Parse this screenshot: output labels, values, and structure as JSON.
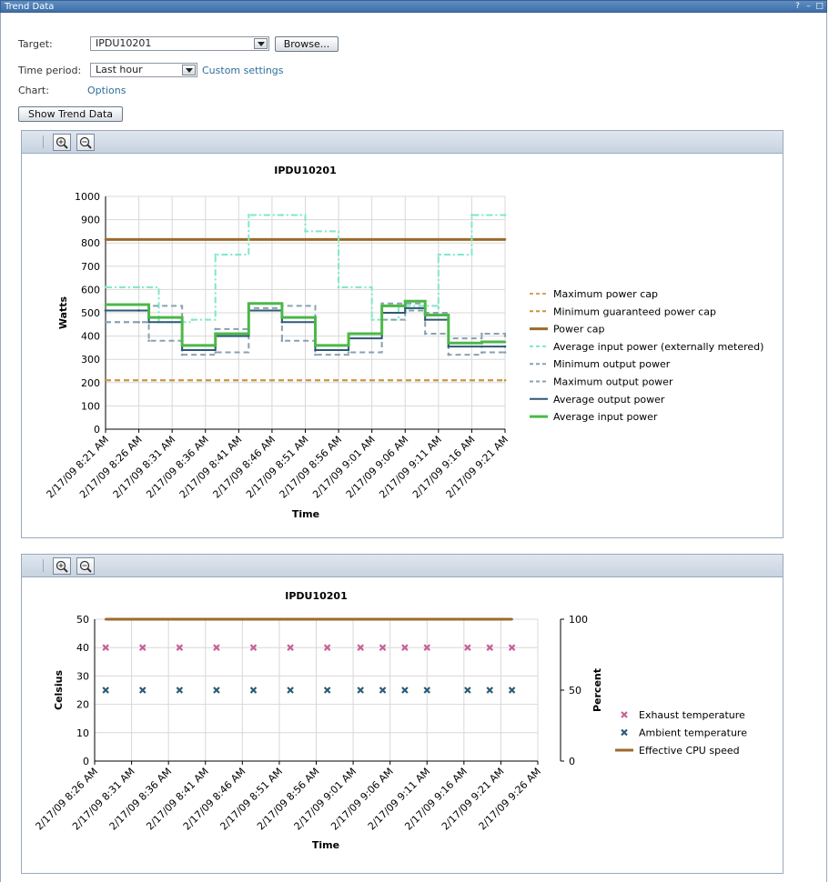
{
  "window": {
    "title": "Trend Data",
    "help_icon": "question-icon",
    "minimize_icon": "minimize-icon",
    "maximize_icon": "maximize-icon"
  },
  "form": {
    "target_label": "Target:",
    "target_value": "IPDU10201",
    "browse_label": "Browse...",
    "time_period_label": "Time period:",
    "time_period_value": "Last hour",
    "custom_settings_label": "Custom settings",
    "chart_label": "Chart:",
    "options_label": "Options",
    "show_trend_label": "Show Trend Data"
  },
  "toolbar": {
    "zoom_in_icon": "zoom-in-icon",
    "zoom_out_icon": "zoom-out-icon"
  },
  "chart_data": [
    {
      "type": "line",
      "title": "IPDU10201",
      "xlabel": "Time",
      "ylabel": "Watts",
      "ylim": [
        0,
        1000
      ],
      "yticks": [
        "0",
        "100",
        "200",
        "300",
        "400",
        "500",
        "600",
        "700",
        "800",
        "900",
        "1000"
      ],
      "grid": true,
      "legend": "right",
      "x": [
        "2/17/09 8:21 AM",
        "2/17/09 8:26 AM",
        "2/17/09 8:31 AM",
        "2/17/09 8:36 AM",
        "2/17/09 8:41 AM",
        "2/17/09 8:46 AM",
        "2/17/09 8:51 AM",
        "2/17/09 8:56 AM",
        "2/17/09 9:01 AM",
        "2/17/09 9:06 AM",
        "2/17/09 9:11 AM",
        "2/17/09 9:16 AM",
        "2/17/09 9:21 AM"
      ],
      "series": [
        {
          "name": "Maximum power cap",
          "color": "#d9a066",
          "style": "dashed",
          "points": [
            [
              0,
              210
            ],
            [
              12,
              210
            ]
          ]
        },
        {
          "name": "Minimum guaranteed power cap",
          "color": "#c8933f",
          "style": "dashed",
          "points": [
            [
              0,
              210
            ],
            [
              12,
              210
            ]
          ]
        },
        {
          "name": "Power cap",
          "color": "#9c6a2c",
          "style": "solid-thick",
          "points": [
            [
              0,
              815
            ],
            [
              12,
              815
            ]
          ]
        },
        {
          "name": "Average input power (externally metered)",
          "color": "#7ee8c8",
          "style": "dashdot",
          "points": [
            [
              0,
              610
            ],
            [
              1,
              610
            ],
            [
              1.6,
              460
            ],
            [
              2.6,
              470
            ],
            [
              3.3,
              750
            ],
            [
              4.3,
              920
            ],
            [
              5.3,
              920
            ],
            [
              6,
              850
            ],
            [
              7,
              610
            ],
            [
              8,
              470
            ],
            [
              8.8,
              530
            ],
            [
              10,
              520
            ],
            [
              10,
              750
            ],
            [
              11,
              920
            ],
            [
              12,
              920
            ]
          ]
        },
        {
          "name": "Minimum output power",
          "color": "#8aa0b0",
          "style": "dashed",
          "points": [
            [
              0,
              460
            ],
            [
              1,
              460
            ],
            [
              1.3,
              380
            ],
            [
              2.3,
              320
            ],
            [
              3.3,
              330
            ],
            [
              4.3,
              520
            ],
            [
              5.3,
              380
            ],
            [
              6.3,
              320
            ],
            [
              7.3,
              330
            ],
            [
              8.3,
              470
            ],
            [
              9,
              510
            ],
            [
              9.6,
              410
            ],
            [
              10.3,
              320
            ],
            [
              11.3,
              330
            ],
            [
              12,
              330
            ]
          ]
        },
        {
          "name": "Maximum output power",
          "color": "#8aa0b0",
          "style": "dashed",
          "points": [
            [
              0,
              460
            ],
            [
              1,
              460
            ],
            [
              1.3,
              530
            ],
            [
              2.3,
              340
            ],
            [
              3.3,
              430
            ],
            [
              4.3,
              540
            ],
            [
              5.3,
              530
            ],
            [
              6.3,
              360
            ],
            [
              7.3,
              410
            ],
            [
              8.3,
              540
            ],
            [
              9,
              540
            ],
            [
              9.6,
              500
            ],
            [
              10.3,
              390
            ],
            [
              11.3,
              410
            ],
            [
              12,
              400
            ]
          ]
        },
        {
          "name": "Average output power",
          "color": "#2f5876",
          "style": "solid",
          "points": [
            [
              0,
              510
            ],
            [
              1,
              510
            ],
            [
              1.3,
              460
            ],
            [
              2.3,
              340
            ],
            [
              3.3,
              400
            ],
            [
              4.3,
              510
            ],
            [
              5.3,
              460
            ],
            [
              6.3,
              340
            ],
            [
              7.3,
              390
            ],
            [
              8.3,
              500
            ],
            [
              9,
              520
            ],
            [
              9.6,
              470
            ],
            [
              10.3,
              355
            ],
            [
              11.3,
              355
            ],
            [
              12,
              355
            ]
          ]
        },
        {
          "name": "Average input power",
          "color": "#4cb848",
          "style": "solid-thick",
          "points": [
            [
              0,
              535
            ],
            [
              1,
              535
            ],
            [
              1.3,
              480
            ],
            [
              2.3,
              360
            ],
            [
              3.3,
              410
            ],
            [
              4.3,
              540
            ],
            [
              5.3,
              480
            ],
            [
              6.3,
              360
            ],
            [
              7.3,
              410
            ],
            [
              8.3,
              530
            ],
            [
              9,
              550
            ],
            [
              9.6,
              490
            ],
            [
              10.3,
              370
            ],
            [
              11.3,
              375
            ],
            [
              12,
              375
            ]
          ]
        }
      ]
    },
    {
      "type": "scatter",
      "title": "IPDU10201",
      "xlabel": "Time",
      "ylabel": "Celsius",
      "y2label": "Percent",
      "ylim": [
        0,
        50
      ],
      "y2lim": [
        0,
        100
      ],
      "yticks": [
        "0",
        "10",
        "20",
        "30",
        "40",
        "50"
      ],
      "y2ticks": [
        "0",
        "50",
        "100"
      ],
      "grid": true,
      "legend": "right",
      "x": [
        "2/17/09 8:26 AM",
        "2/17/09 8:31 AM",
        "2/17/09 8:36 AM",
        "2/17/09 8:41 AM",
        "2/17/09 8:46 AM",
        "2/17/09 8:51 AM",
        "2/17/09 8:56 AM",
        "2/17/09 9:01 AM",
        "2/17/09 9:06 AM",
        "2/17/09 9:11 AM",
        "2/17/09 9:16 AM",
        "2/17/09 9:21 AM",
        "2/17/09 9:26 AM"
      ],
      "series": [
        {
          "name": "Exhaust temperature",
          "color": "#c8609a",
          "marker": "x",
          "points": [
            [
              0.3,
              40
            ],
            [
              1.3,
              40
            ],
            [
              2.3,
              40
            ],
            [
              3.3,
              40
            ],
            [
              4.3,
              40
            ],
            [
              5.3,
              40
            ],
            [
              6.3,
              40
            ],
            [
              7.2,
              40
            ],
            [
              7.8,
              40
            ],
            [
              8.4,
              40
            ],
            [
              9,
              40
            ],
            [
              10.1,
              40
            ],
            [
              10.7,
              40
            ],
            [
              11.3,
              40
            ]
          ]
        },
        {
          "name": "Ambient temperature",
          "color": "#2b5a78",
          "marker": "x",
          "points": [
            [
              0.3,
              25
            ],
            [
              1.3,
              25
            ],
            [
              2.3,
              25
            ],
            [
              3.3,
              25
            ],
            [
              4.3,
              25
            ],
            [
              5.3,
              25
            ],
            [
              6.3,
              25
            ],
            [
              7.2,
              25
            ],
            [
              7.8,
              25
            ],
            [
              8.4,
              25
            ],
            [
              9,
              25
            ],
            [
              10.1,
              25
            ],
            [
              10.7,
              25
            ],
            [
              11.3,
              25
            ]
          ]
        },
        {
          "name": "Effective CPU speed",
          "color": "#9c6a2c",
          "marker": "line",
          "axis": "y2",
          "points": [
            [
              0.3,
              100
            ],
            [
              11.3,
              100
            ]
          ]
        }
      ]
    }
  ]
}
